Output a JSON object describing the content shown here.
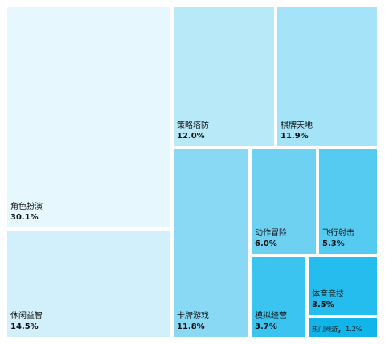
{
  "chart_data": {
    "type": "treemap",
    "title": "",
    "items": [
      {
        "name": "角色扮演",
        "value": 30.1,
        "label_value": "30.1%",
        "color": "#e6f7fe"
      },
      {
        "name": "休闲益智",
        "value": 14.5,
        "label_value": "14.5%",
        "color": "#d2f0fb"
      },
      {
        "name": "策略塔防",
        "value": 12.0,
        "label_value": "12.0%",
        "color": "#b8e9f9"
      },
      {
        "name": "棋牌天地",
        "value": 11.9,
        "label_value": "11.9%",
        "color": "#a5e3f8"
      },
      {
        "name": "卡牌游戏",
        "value": 11.8,
        "label_value": "11.8%",
        "color": "#8ad9f4"
      },
      {
        "name": "动作冒险",
        "value": 6.0,
        "label_value": "6.0%",
        "color": "#6fd1f2"
      },
      {
        "name": "飞行射击",
        "value": 5.3,
        "label_value": "5.3%",
        "color": "#55cbf1"
      },
      {
        "name": "模拟经营",
        "value": 3.7,
        "label_value": "3.7%",
        "color": "#3cc4f0"
      },
      {
        "name": "体育竞技",
        "value": 3.5,
        "label_value": "3.5%",
        "color": "#25bdee"
      },
      {
        "name": "热门网游",
        "value": 1.2,
        "label_value": "1.2%",
        "color": "#12b5ea"
      }
    ]
  }
}
